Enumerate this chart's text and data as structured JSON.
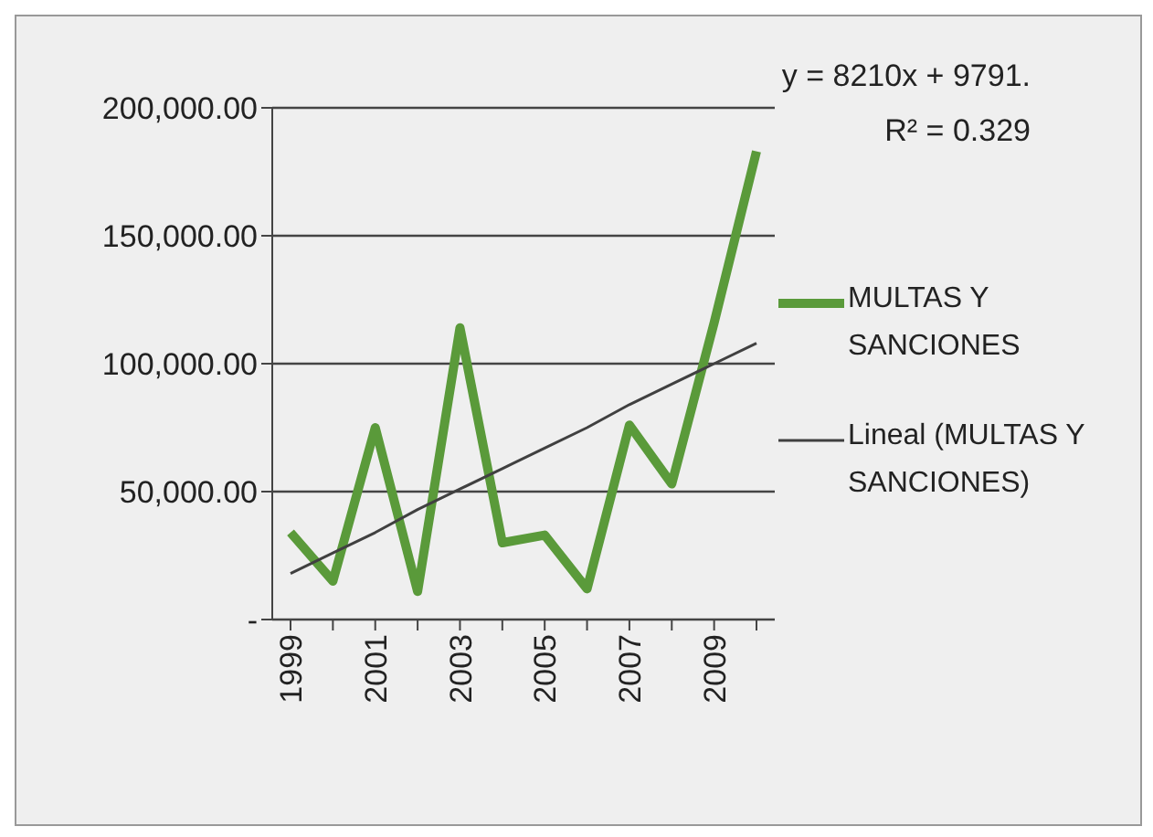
{
  "chart_data": {
    "type": "line",
    "categories": [
      "1999",
      null,
      "2001",
      null,
      "2003",
      null,
      "2005",
      null,
      "2007",
      null,
      "2009",
      null
    ],
    "series": [
      {
        "name": "MULTAS Y SANCIONES",
        "color": "#5a9a3a",
        "values": [
          34000,
          15000,
          75000,
          11000,
          114000,
          30000,
          33000,
          12000,
          76000,
          53000,
          116000,
          183000
        ]
      },
      {
        "name": "Lineal (MULTAS Y SANCIONES)",
        "color": "#404040",
        "values": [
          18000,
          26000,
          34000,
          43000,
          51000,
          59000,
          67000,
          75000,
          84000,
          92000,
          100000,
          108000
        ]
      }
    ],
    "ylim": [
      0,
      200000
    ],
    "yticks": [
      {
        "value": 0,
        "label": "-"
      },
      {
        "value": 50000,
        "label": "50,000.00"
      },
      {
        "value": 100000,
        "label": "100,000.00"
      },
      {
        "value": 150000,
        "label": "150,000.00"
      },
      {
        "value": 200000,
        "label": "200,000.00"
      }
    ],
    "grid": "y",
    "legend": "right",
    "marker": "none",
    "annotations": [
      "y = 8210x + 9791.",
      "R² = 0.329"
    ]
  }
}
